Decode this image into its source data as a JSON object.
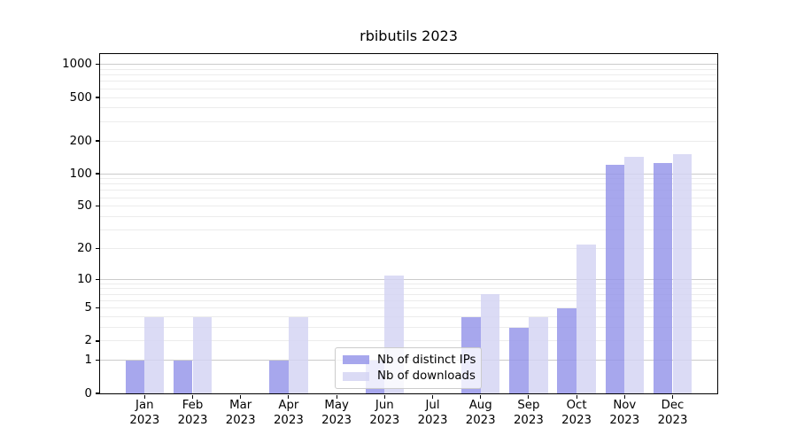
{
  "title": "rbibutils 2023",
  "chart_data": {
    "type": "bar",
    "title": "rbibutils 2023",
    "categories": [
      "Jan 2023",
      "Feb 2023",
      "Mar 2023",
      "Apr 2023",
      "May 2023",
      "Jun 2023",
      "Jul 2023",
      "Aug 2023",
      "Sep 2023",
      "Oct 2023",
      "Nov 2023",
      "Dec 2023"
    ],
    "series": [
      {
        "name": "Nb of distinct IPs",
        "color": "#a7a7ee",
        "fill": "rgba(148,148,233,0.82)",
        "values": [
          1,
          1,
          0,
          1,
          0,
          1,
          0,
          4,
          3,
          5,
          120,
          126
        ]
      },
      {
        "name": "Nb of downloads",
        "color": "#dcdcf6",
        "fill": "rgba(211,211,243,0.82)",
        "values": [
          4,
          4,
          0,
          4,
          0,
          11,
          0,
          7,
          4,
          22,
          144,
          152
        ]
      }
    ],
    "y_scale": "log1p",
    "y_ticks": [
      0,
      1,
      2,
      5,
      10,
      20,
      50,
      100,
      200,
      500,
      1000
    ],
    "y_major_grid_at": [
      1,
      10,
      100,
      1000
    ],
    "ylim": [
      0,
      1100
    ],
    "grid": true,
    "legend_position": "lower center",
    "xlabel": "",
    "ylabel": ""
  }
}
